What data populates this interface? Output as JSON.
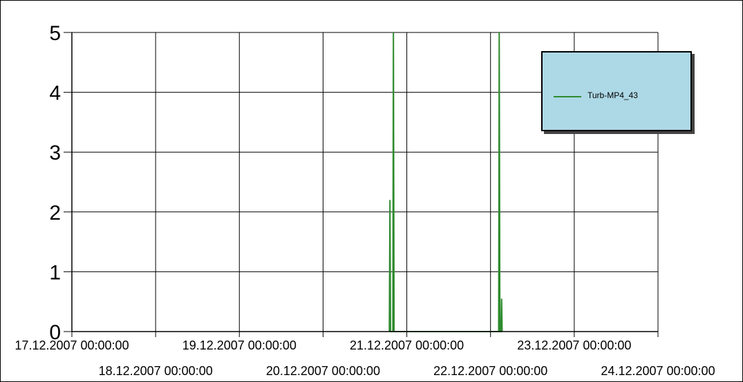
{
  "chart_data": {
    "type": "line",
    "title": "",
    "xlabel": "",
    "ylabel": "",
    "ylim": [
      0,
      5
    ],
    "y_ticks": [
      "0",
      "1",
      "2",
      "3",
      "4",
      "5"
    ],
    "x_ticks": [
      "17.12.2007 00:00:00",
      "18.12.2007 00:00:00",
      "19.12.2007 00:00:00",
      "20.12.2007 00:00:00",
      "21.12.2007 00:00:00",
      "22.12.2007 00:00:00",
      "23.12.2007 00:00:00",
      "24.12.2007 00:00:00"
    ],
    "grid": true,
    "legend_position": "top-right",
    "series": [
      {
        "name": "Turb-MP4_43",
        "color": "#2e8b2e",
        "points": [
          [
            "20.12.2007 19:00",
            0
          ],
          [
            "20.12.2007 19:10",
            2.2
          ],
          [
            "20.12.2007 19:20",
            0
          ],
          [
            "20.12.2007 20:00",
            0
          ],
          [
            "20.12.2007 20:10",
            5
          ],
          [
            "20.12.2007 20:20",
            0
          ],
          [
            "22.12.2007 02:20",
            0
          ],
          [
            "22.12.2007 02:30",
            5
          ],
          [
            "22.12.2007 02:40",
            0
          ],
          [
            "22.12.2007 03:00",
            0
          ],
          [
            "22.12.2007 03:10",
            0.55
          ],
          [
            "22.12.2007 03:20",
            0
          ]
        ]
      }
    ]
  }
}
